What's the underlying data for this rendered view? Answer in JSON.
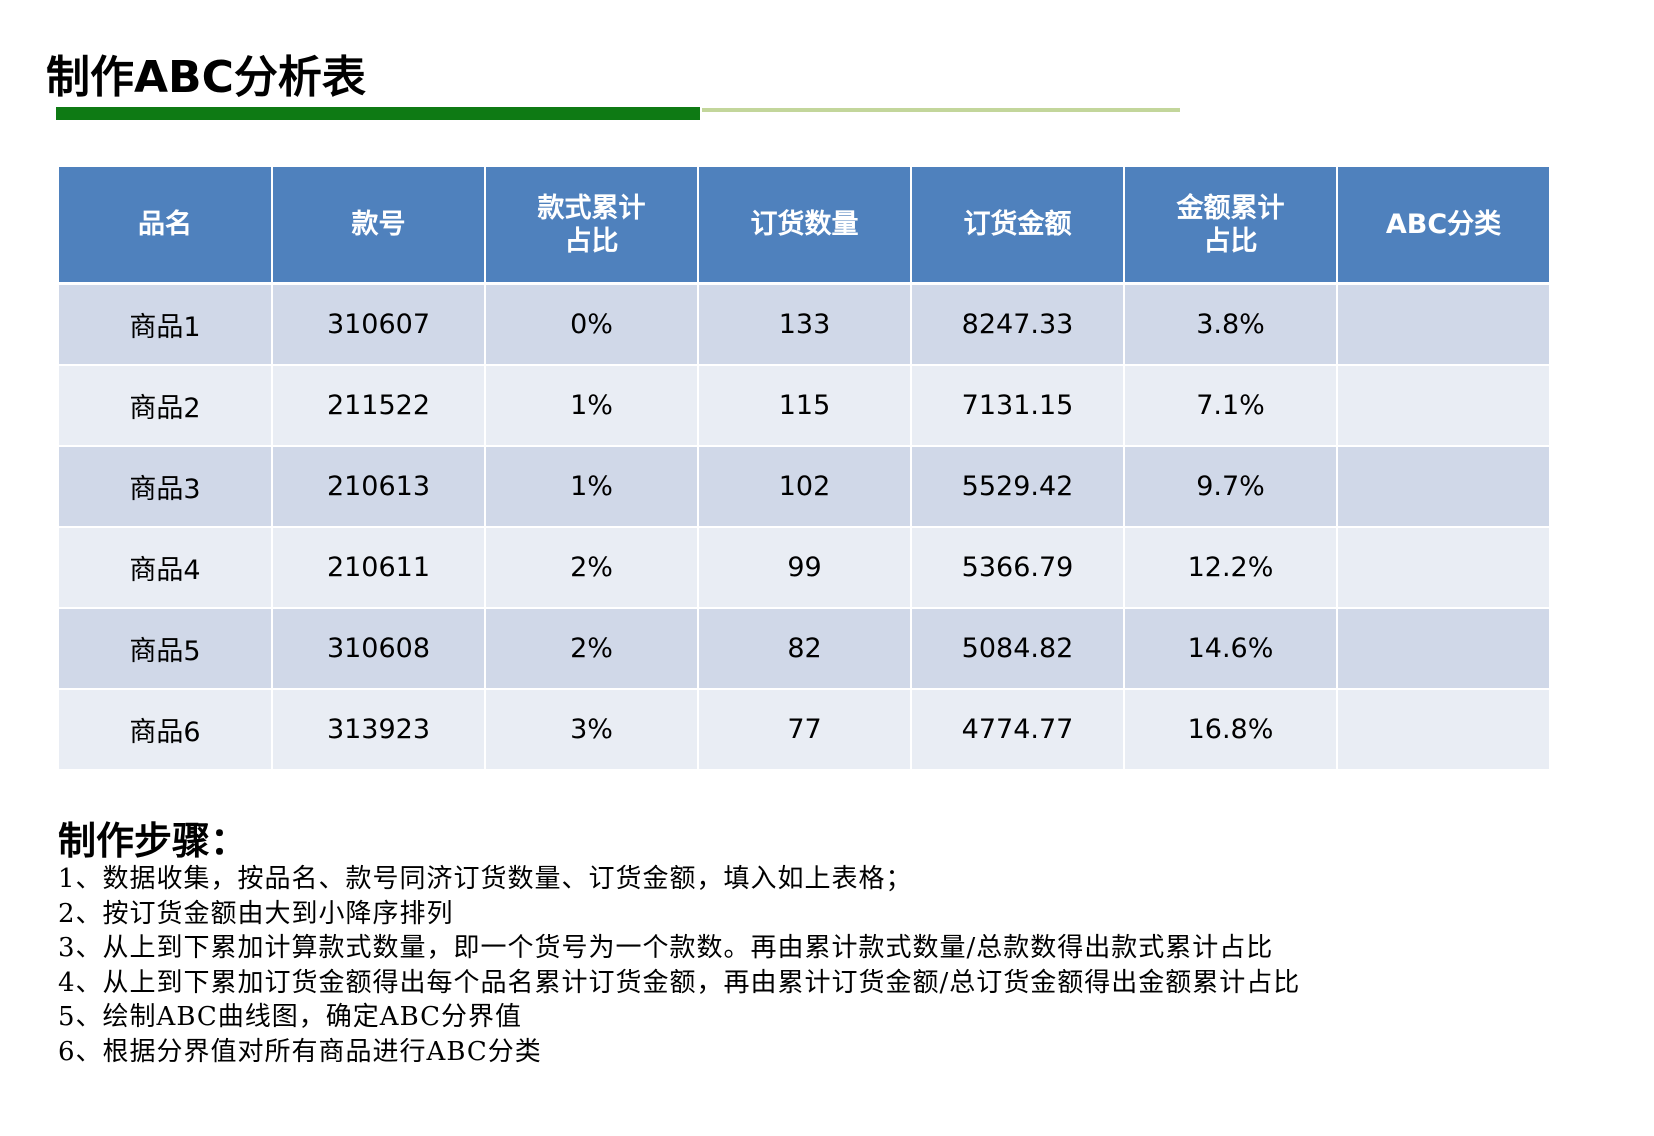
{
  "title": "制作ABC分析表",
  "colors": {
    "title_bar_dark": "#0e7a14",
    "title_bar_light": "#c3d69b",
    "table_header_bg": "#4f81bd",
    "row_odd_bg": "#d0d8e8",
    "row_even_bg": "#e9edf4"
  },
  "table": {
    "headers": [
      "品名",
      "款号",
      "款式累计占比",
      "订货数量",
      "订货金额",
      "金额累计占比",
      "ABC分类"
    ],
    "rows": [
      [
        "商品1",
        "310607",
        "0%",
        "133",
        "8247.33",
        "3.8%",
        ""
      ],
      [
        "商品2",
        "211522",
        "1%",
        "115",
        "7131.15",
        "7.1%",
        ""
      ],
      [
        "商品3",
        "210613",
        "1%",
        "102",
        "5529.42",
        "9.7%",
        ""
      ],
      [
        "商品4",
        "210611",
        "2%",
        "99",
        "5366.79",
        "12.2%",
        ""
      ],
      [
        "商品5",
        "310608",
        "2%",
        "82",
        "5084.82",
        "14.6%",
        ""
      ],
      [
        "商品6",
        "313923",
        "3%",
        "77",
        "4774.77",
        "16.8%",
        ""
      ]
    ]
  },
  "steps": {
    "heading": "制作步骤：",
    "items": [
      "1、数据收集，按品名、款号同济订货数量、订货金额，填入如上表格；",
      "2、按订货金额由大到小降序排列",
      "3、从上到下累加计算款式数量，即一个货号为一个款数。再由累计款式数量/总款数得出款式累计占比",
      "4、从上到下累加订货金额得出每个品名累计订货金额，再由累计订货金额/总订货金额得出金额累计占比",
      "5、绘制ABC曲线图，确定ABC分界值",
      "6、根据分界值对所有商品进行ABC分类"
    ]
  }
}
